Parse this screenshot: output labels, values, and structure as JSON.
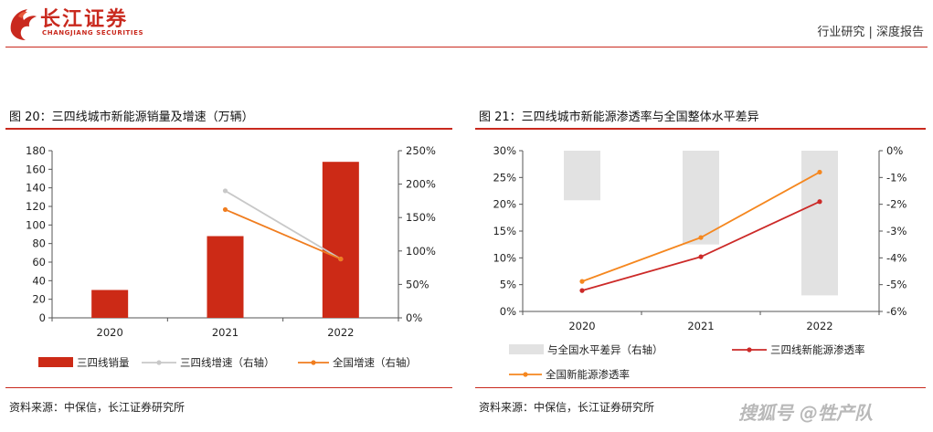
{
  "header": {
    "brand_cn": "长江证券",
    "brand_en": "CHANGJIANG SECURITIES",
    "report_type": "行业研究 | 深度报告",
    "brand_color": "#c9291e"
  },
  "figures": [
    {
      "title": "图 20：三四线城市新能源销量及增速（万辆）",
      "source": "资料来源：中保信，长江证券研究所"
    },
    {
      "title": "图 21：三四线城市新能源渗透率与全国整体水平差异",
      "source": "资料来源：中保信，长江证券研究所"
    }
  ],
  "watermark": "搜狐号 @牲产队",
  "chart_data": [
    {
      "type": "bar",
      "title": "图 20：三四线城市新能源销量及增速（万辆）",
      "categories": [
        "2020",
        "2021",
        "2022"
      ],
      "left_axis": {
        "ticks": [
          "0",
          "20",
          "40",
          "60",
          "80",
          "100",
          "120",
          "140",
          "160",
          "180"
        ],
        "ylim": [
          0,
          180
        ]
      },
      "right_axis": {
        "ticks": [
          "0%",
          "50%",
          "100%",
          "150%",
          "200%",
          "250%"
        ],
        "ylim": [
          0,
          250
        ]
      },
      "series": [
        {
          "name": "三四线销量",
          "kind": "bar",
          "axis": "left",
          "color": "#cc2a16",
          "values": [
            30,
            88,
            168
          ]
        },
        {
          "name": "三四线增速（右轴）",
          "kind": "line",
          "axis": "right",
          "color": "#c8c8c8",
          "values": [
            null,
            190,
            88
          ]
        },
        {
          "name": "全国增速（右轴）",
          "kind": "line",
          "axis": "right",
          "color": "#f07d1f",
          "values": [
            null,
            162,
            88
          ]
        }
      ]
    },
    {
      "type": "bar",
      "title": "图 21：三四线城市新能源渗透率与全国整体水平差异",
      "categories": [
        "2020",
        "2021",
        "2022"
      ],
      "left_axis": {
        "ticks": [
          "0%",
          "5%",
          "10%",
          "15%",
          "20%",
          "25%",
          "30%"
        ],
        "ylim": [
          0,
          30
        ]
      },
      "right_axis": {
        "ticks": [
          "0%",
          "-1%",
          "-2%",
          "-3%",
          "-4%",
          "-5%",
          "-6%"
        ],
        "ylim": [
          -6,
          0
        ]
      },
      "series": [
        {
          "name": "与全国水平差异（右轴）",
          "kind": "bar",
          "axis": "right",
          "color": "#e2e2e2",
          "values": [
            -1.85,
            -3.5,
            -5.4
          ]
        },
        {
          "name": "三四线新能源渗透率",
          "kind": "line",
          "axis": "left",
          "color": "#cc2a28",
          "values": [
            3.9,
            10.2,
            20.5
          ]
        },
        {
          "name": "全国新能源渗透率",
          "kind": "line",
          "axis": "left",
          "color": "#f5871f",
          "values": [
            5.6,
            13.8,
            26.0
          ]
        }
      ]
    }
  ]
}
